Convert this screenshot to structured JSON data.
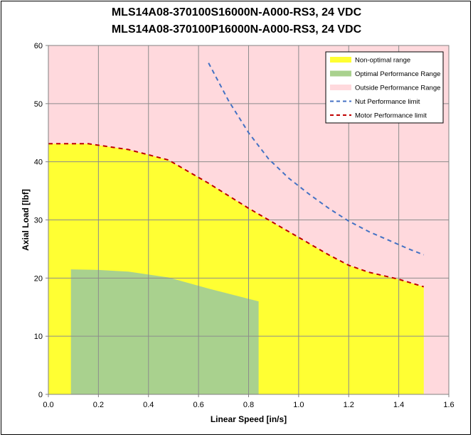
{
  "chart_data": {
    "type": "area",
    "title_lines": [
      "MLS14A08-370100S16000N-A000-RS3, 24 VDC",
      "MLS14A08-370100P16000N-A000-RS3, 24 VDC"
    ],
    "xlabel": "Linear Speed [in/s]",
    "ylabel": "Axial Load [lbf]",
    "xlim": [
      0,
      1.6
    ],
    "ylim": [
      0,
      60
    ],
    "xticks": [
      0,
      0.2,
      0.4,
      0.6,
      0.8,
      1.0,
      1.2,
      1.4,
      1.6
    ],
    "xtick_labels": [
      "0.0",
      "0.2",
      "0.4",
      "0.6",
      "0.8",
      "1.0",
      "1.2",
      "1.4",
      "1.6"
    ],
    "yticks": [
      0,
      10,
      20,
      30,
      40,
      50,
      60
    ],
    "ytick_labels": [
      "0",
      "10",
      "20",
      "30",
      "40",
      "50",
      "60"
    ],
    "grid": true,
    "legend_position": "top-right",
    "background_series": {
      "name": "Outside Performance Range",
      "color": "#ffd9dd"
    },
    "series": [
      {
        "name": "Non-optimal range",
        "kind": "area",
        "color": "#ffff33",
        "x": [
          0.0,
          0.16,
          0.32,
          0.48,
          0.64,
          0.8,
          0.96,
          1.04,
          1.12,
          1.2,
          1.28,
          1.4,
          1.5
        ],
        "y": [
          43.1,
          43.1,
          42.1,
          40.3,
          36.3,
          32.0,
          28.0,
          26.0,
          24.0,
          22.2,
          21.0,
          19.8,
          18.5
        ]
      },
      {
        "name": "Optimal Performance Range",
        "kind": "area",
        "color": "#a9d18e",
        "x": [
          0.09,
          0.2,
          0.32,
          0.48,
          0.64,
          0.84
        ],
        "y": [
          21.5,
          21.4,
          21.1,
          20.1,
          18.2,
          16.0
        ]
      },
      {
        "name": "Nut Performance limit",
        "kind": "line",
        "dash": true,
        "color": "#4472c4",
        "x": [
          0.64,
          0.72,
          0.8,
          0.88,
          0.96,
          1.04,
          1.12,
          1.2,
          1.28,
          1.36,
          1.44,
          1.5
        ],
        "y": [
          57.0,
          50.5,
          45.0,
          40.5,
          37.2,
          34.5,
          32.0,
          29.8,
          28.0,
          26.5,
          25.0,
          24.0
        ]
      },
      {
        "name": "Motor Performance limit",
        "kind": "line",
        "dash": true,
        "color": "#c00000",
        "x": [
          0.0,
          0.16,
          0.32,
          0.48,
          0.64,
          0.8,
          0.96,
          1.04,
          1.12,
          1.2,
          1.28,
          1.4,
          1.5
        ],
        "y": [
          43.1,
          43.1,
          42.1,
          40.3,
          36.3,
          32.0,
          28.0,
          26.0,
          24.0,
          22.2,
          21.0,
          19.8,
          18.5
        ]
      }
    ],
    "legend": [
      {
        "label": "Non-optimal range",
        "swatch": "fill",
        "color": "#ffff33"
      },
      {
        "label": "Optimal Performance Range",
        "swatch": "fill",
        "color": "#a9d18e"
      },
      {
        "label": "Outside Performance Range",
        "swatch": "fill",
        "color": "#ffd9dd"
      },
      {
        "label": "Nut Performance limit",
        "swatch": "dash",
        "color": "#4472c4"
      },
      {
        "label": "Motor Performance limit",
        "swatch": "dash",
        "color": "#c00000"
      }
    ]
  }
}
